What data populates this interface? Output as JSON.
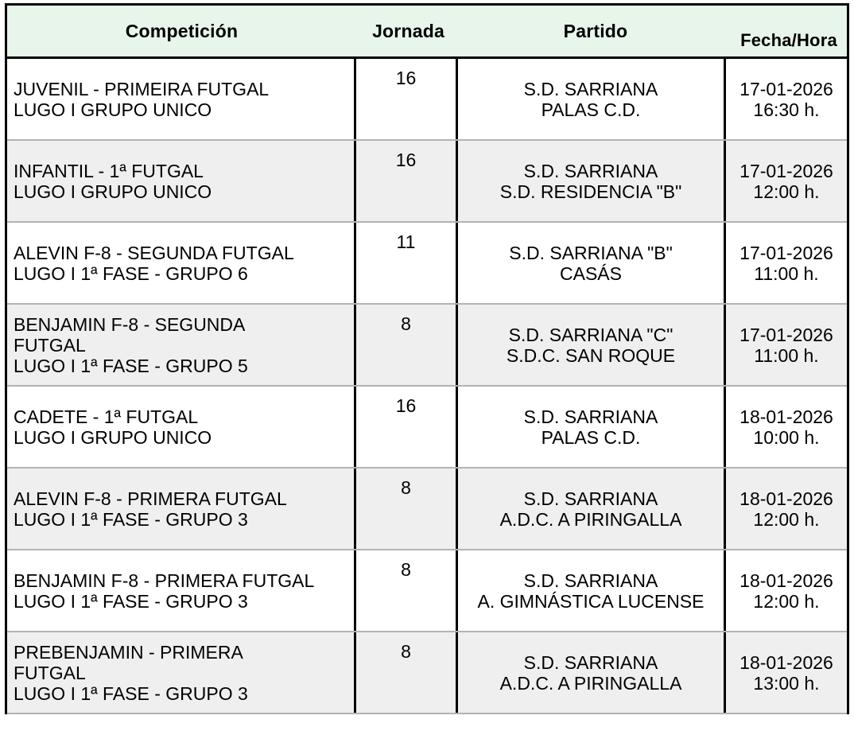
{
  "colors": {
    "header_background": "#e7f5ea",
    "alt_row_background": "#efefef",
    "table_border": "#000000",
    "row_separator": "#b3b3b3",
    "text": "#000000"
  },
  "table": {
    "headers": {
      "competicion": "Competición",
      "jornada": "Jornada",
      "partido": "Partido",
      "fecha_hora": "Fecha/Hora"
    },
    "rows": [
      {
        "competicion_lines": [
          "JUVENIL - PRIMEIRA FUTGAL",
          "LUGO I GRUPO UNICO"
        ],
        "jornada": "16",
        "partido": {
          "home": "S.D. SARRIANA",
          "away": "PALAS C.D."
        },
        "fecha": {
          "date": "17-01-2026",
          "time": "16:30 h."
        }
      },
      {
        "competicion_lines": [
          "INFANTIL - 1ª FUTGAL",
          "LUGO I GRUPO UNICO"
        ],
        "jornada": "16",
        "partido": {
          "home": "S.D. SARRIANA",
          "away": "S.D. RESIDENCIA \"B\""
        },
        "fecha": {
          "date": "17-01-2026",
          "time": "12:00 h."
        }
      },
      {
        "competicion_lines": [
          "ALEVIN F-8 - SEGUNDA FUTGAL",
          "LUGO I 1ª FASE - GRUPO 6"
        ],
        "jornada": "11",
        "partido": {
          "home": "S.D. SARRIANA \"B\"",
          "away": "CASÁS"
        },
        "fecha": {
          "date": "17-01-2026",
          "time": "11:00 h."
        }
      },
      {
        "competicion_lines": [
          "BENJAMIN F-8 - SEGUNDA",
          "FUTGAL",
          "LUGO I 1ª FASE - GRUPO 5"
        ],
        "jornada": "8",
        "partido": {
          "home": "S.D. SARRIANA \"C\"",
          "away": "S.D.C. SAN ROQUE"
        },
        "fecha": {
          "date": "17-01-2026",
          "time": "11:00 h."
        }
      },
      {
        "competicion_lines": [
          "CADETE - 1ª FUTGAL",
          "LUGO I GRUPO UNICO"
        ],
        "jornada": "16",
        "partido": {
          "home": "S.D. SARRIANA",
          "away": "PALAS C.D."
        },
        "fecha": {
          "date": "18-01-2026",
          "time": "10:00 h."
        }
      },
      {
        "competicion_lines": [
          "ALEVIN F-8 - PRIMERA FUTGAL",
          "LUGO I 1ª FASE - GRUPO 3"
        ],
        "jornada": "8",
        "partido": {
          "home": "S.D. SARRIANA",
          "away": "A.D.C. A PIRINGALLA"
        },
        "fecha": {
          "date": "18-01-2026",
          "time": "12:00 h."
        }
      },
      {
        "competicion_lines": [
          "BENJAMIN F-8 - PRIMERA FUTGAL",
          "LUGO I 1ª FASE - GRUPO 3"
        ],
        "jornada": "8",
        "partido": {
          "home": "S.D. SARRIANA",
          "away": "A. GIMNÁSTICA LUCENSE"
        },
        "fecha": {
          "date": "18-01-2026",
          "time": "12:00 h."
        }
      },
      {
        "competicion_lines": [
          "PREBENJAMIN - PRIMERA",
          "FUTGAL",
          "LUGO I 1ª FASE - GRUPO 3"
        ],
        "jornada": "8",
        "partido": {
          "home": "S.D. SARRIANA",
          "away": "A.D.C. A PIRINGALLA"
        },
        "fecha": {
          "date": "18-01-2026",
          "time": "13:00 h."
        }
      }
    ]
  }
}
